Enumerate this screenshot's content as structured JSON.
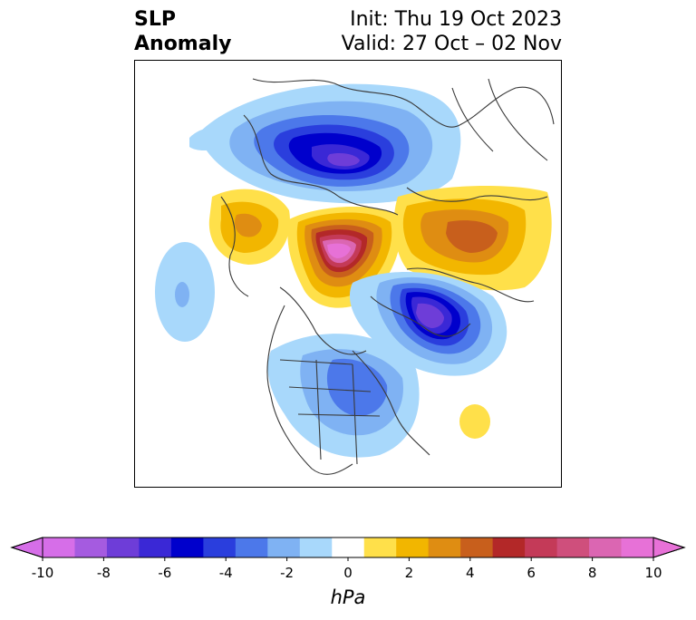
{
  "title": {
    "left_line1": "SLP",
    "left_line2": "Anomaly",
    "right_line1": "Init: Thu 19 Oct 2023",
    "right_line2": "Valid: 27 Oct – 02 Nov"
  },
  "map": {
    "projection": "polar stereographic, North Pole centered",
    "features": [
      "negative-anomaly-north-pacific-asia",
      "positive-anomaly-arctic",
      "positive-anomaly-siberia",
      "positive-anomaly-alaska-gulf",
      "negative-anomaly-greenland-atlantic",
      "negative-anomaly-north-america",
      "positive-anomaly-atlantic-small",
      "negative-anomaly-pacific-small"
    ]
  },
  "colorbar": {
    "unit": "hPa",
    "min": -10,
    "max": 10,
    "step": 1,
    "extend": "both",
    "tick_labels": [
      "-10",
      "-8",
      "-6",
      "-4",
      "-2",
      "0",
      "2",
      "4",
      "6",
      "8",
      "10"
    ],
    "colors": [
      "#d66ee8",
      "#a55be0",
      "#6e3dd8",
      "#3a28d6",
      "#0000cc",
      "#2a3edd",
      "#4c78ea",
      "#7fb2f3",
      "#a8d8fb",
      "#ffffff",
      "#ffe04a",
      "#f2b600",
      "#df8d12",
      "#c85f1c",
      "#b32828",
      "#c43a58",
      "#cf4f7c",
      "#db66b2",
      "#e771d7"
    ],
    "extend_low_color": "#d66ee8",
    "extend_high_color": "#e771d7"
  }
}
